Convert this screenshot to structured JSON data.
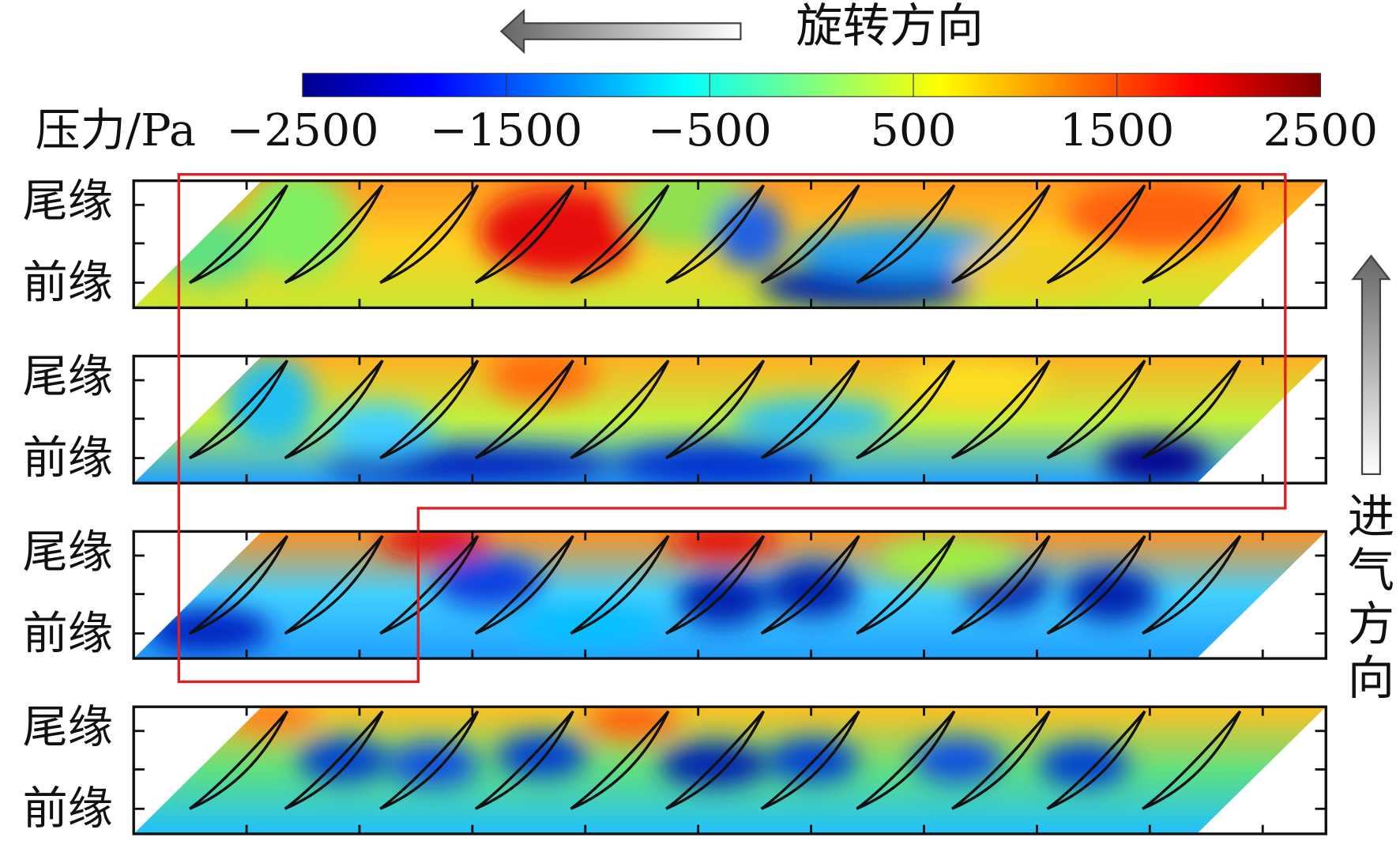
{
  "chart_data": {
    "type": "contour",
    "rotation_label": "旋转方向",
    "inflow_label": "进气方向",
    "colorbar": {
      "label": "压力/Pa",
      "lim": [
        -2500,
        2500
      ],
      "ticks": [
        {
          "value": -2500,
          "label": "−2500"
        },
        {
          "value": -1500,
          "label": "−1500"
        },
        {
          "value": -500,
          "label": "−500"
        },
        500,
        1500,
        2500
      ],
      "colors": [
        "#00008f",
        "#0000ff",
        "#0080ff",
        "#00ffff",
        "#80ff80",
        "#ffff00",
        "#ff8000",
        "#ff0000",
        "#800000"
      ]
    },
    "panels": [
      {
        "y_labels": [
          "尾缘",
          "前缘"
        ]
      },
      {
        "y_labels": [
          "尾缘",
          "前缘"
        ]
      },
      {
        "y_labels": [
          "尾缘",
          "前缘"
        ]
      },
      {
        "y_labels": [
          "尾缘",
          "前缘"
        ]
      }
    ]
  }
}
